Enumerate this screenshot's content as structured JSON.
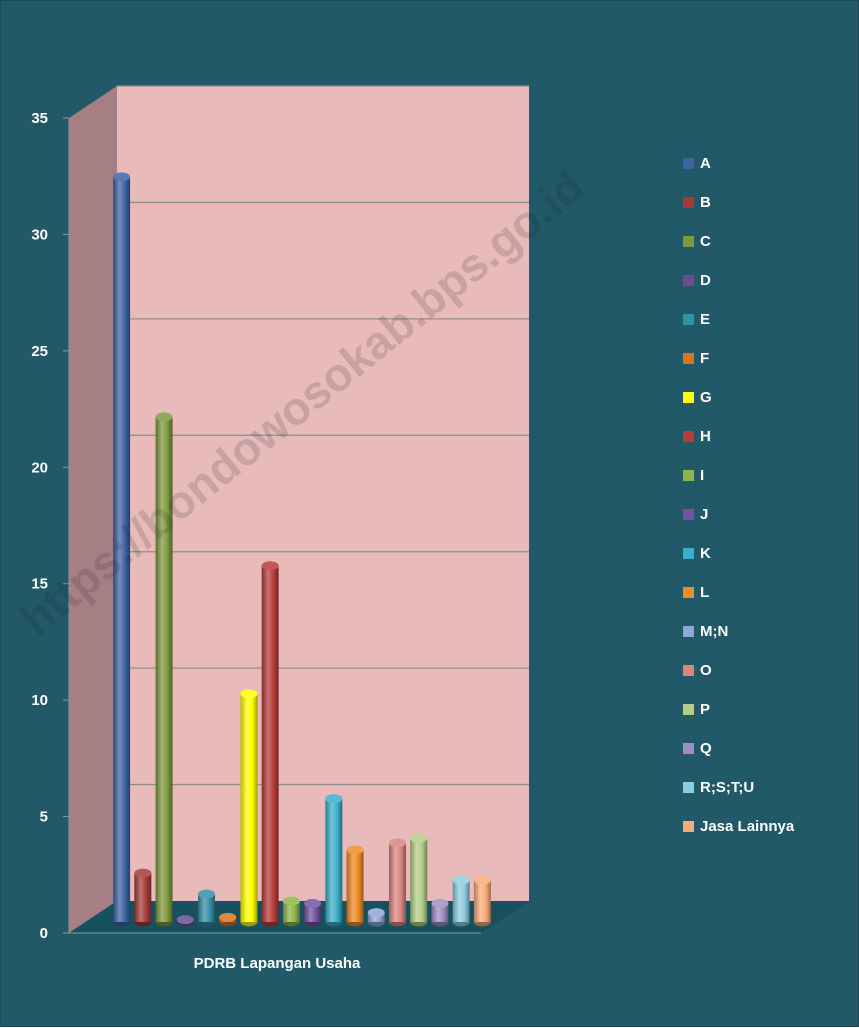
{
  "chart_data": {
    "type": "bar",
    "style": "3d-column",
    "title": "",
    "xlabel": "PDRB Lapangan Usaha",
    "ylabel": "",
    "ylim": [
      0,
      35
    ],
    "yticks": [
      "0",
      "5",
      "10",
      "15",
      "20",
      "25",
      "30",
      "35"
    ],
    "grid": true,
    "legend_position": "right",
    "series": [
      {
        "name": "A",
        "value": 32.0,
        "color": "#3e63a3"
      },
      {
        "name": "B",
        "value": 2.1,
        "color": "#a63a38"
      },
      {
        "name": "C",
        "value": 21.7,
        "color": "#7d9a3d"
      },
      {
        "name": "D",
        "value": 0.1,
        "color": "#6a4f8f"
      },
      {
        "name": "E",
        "value": 1.2,
        "color": "#358fa6"
      },
      {
        "name": "F",
        "value": 0.2,
        "color": "#d8751e"
      },
      {
        "name": "G",
        "value": 9.8,
        "color": "#ffff00"
      },
      {
        "name": "H",
        "value": 15.3,
        "color": "#b73c3a"
      },
      {
        "name": "I",
        "value": 0.9,
        "color": "#8fb54a"
      },
      {
        "name": "J",
        "value": 0.8,
        "color": "#7153a0"
      },
      {
        "name": "K",
        "value": 5.3,
        "color": "#3bafc9"
      },
      {
        "name": "L",
        "value": 3.1,
        "color": "#f08a22"
      },
      {
        "name": "M;N",
        "value": 0.4,
        "color": "#8fa6d8"
      },
      {
        "name": "O",
        "value": 3.4,
        "color": "#d98584"
      },
      {
        "name": "P",
        "value": 3.6,
        "color": "#b3cf86"
      },
      {
        "name": "Q",
        "value": 0.8,
        "color": "#a08ec2"
      },
      {
        "name": "R;S;T;U",
        "value": 1.8,
        "color": "#8ccde0"
      },
      {
        "name": "Jasa Lainnya",
        "value": 1.8,
        "color": "#f7ab78"
      }
    ]
  },
  "watermark": "https://bondowosokab.bps.go.id"
}
